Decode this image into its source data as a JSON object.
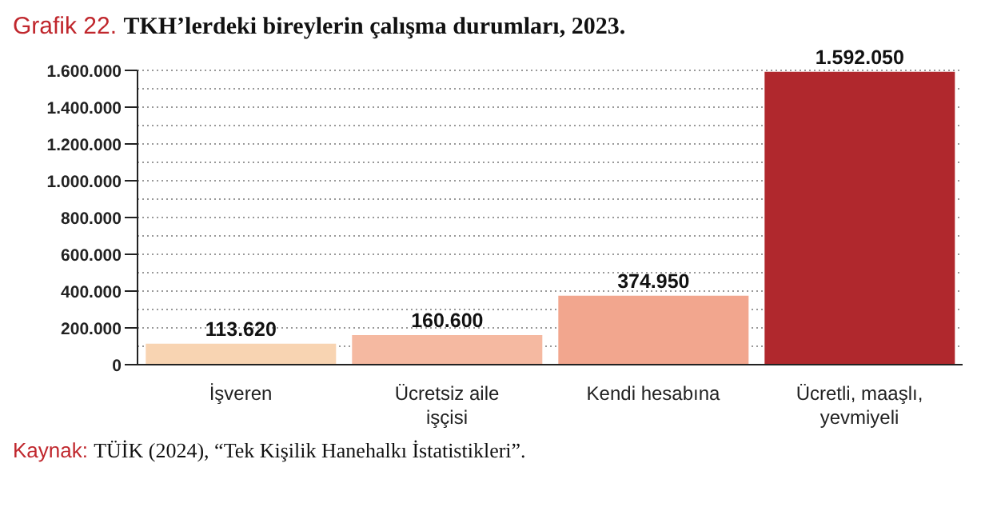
{
  "chart_data": {
    "type": "bar",
    "title": "Grafik 22. TKH’lerdeki bireylerin çalışma durumları, 2023.",
    "categories": [
      "İşveren",
      "Ücretsiz aile işçisi",
      "Kendi hesabına",
      "Ücretli, maaşlı, yevmiyeli"
    ],
    "values": [
      113620,
      160600,
      374950,
      1592050
    ],
    "value_labels": [
      "113.620",
      "160.600",
      "374.950",
      "1.592.050"
    ],
    "colors": [
      "#f8d4b2",
      "#f5b9a1",
      "#f2a68e",
      "#b0282d"
    ],
    "ylim": [
      0,
      1600000
    ],
    "yticks": [
      0,
      {
        "value": 100000,
        "label": null
      },
      {
        "value": 200000,
        "label": "200.000"
      },
      {
        "value": 300000,
        "label": null
      },
      {
        "value": 400000,
        "label": "400.000"
      },
      {
        "value": 500000,
        "label": null
      },
      {
        "value": 600000,
        "label": "600.000"
      },
      {
        "value": 700000,
        "label": null
      },
      {
        "value": 800000,
        "label": "800.000"
      },
      {
        "value": 900000,
        "label": null
      },
      {
        "value": 1000000,
        "label": "1.000.000"
      },
      {
        "value": 1100000,
        "label": null
      },
      {
        "value": 1200000,
        "label": "1.200.000"
      },
      {
        "value": 1300000,
        "label": null
      },
      {
        "value": 1400000,
        "label": "1.400.000"
      },
      {
        "value": 1500000,
        "label": null
      },
      {
        "value": 1600000,
        "label": "1.600.000"
      }
    ],
    "grid": "y",
    "annotations": [
      "Kaynak: TÜİK (2024), “Tek Kişilik Hanehalkı İstatistikleri”."
    ]
  }
}
